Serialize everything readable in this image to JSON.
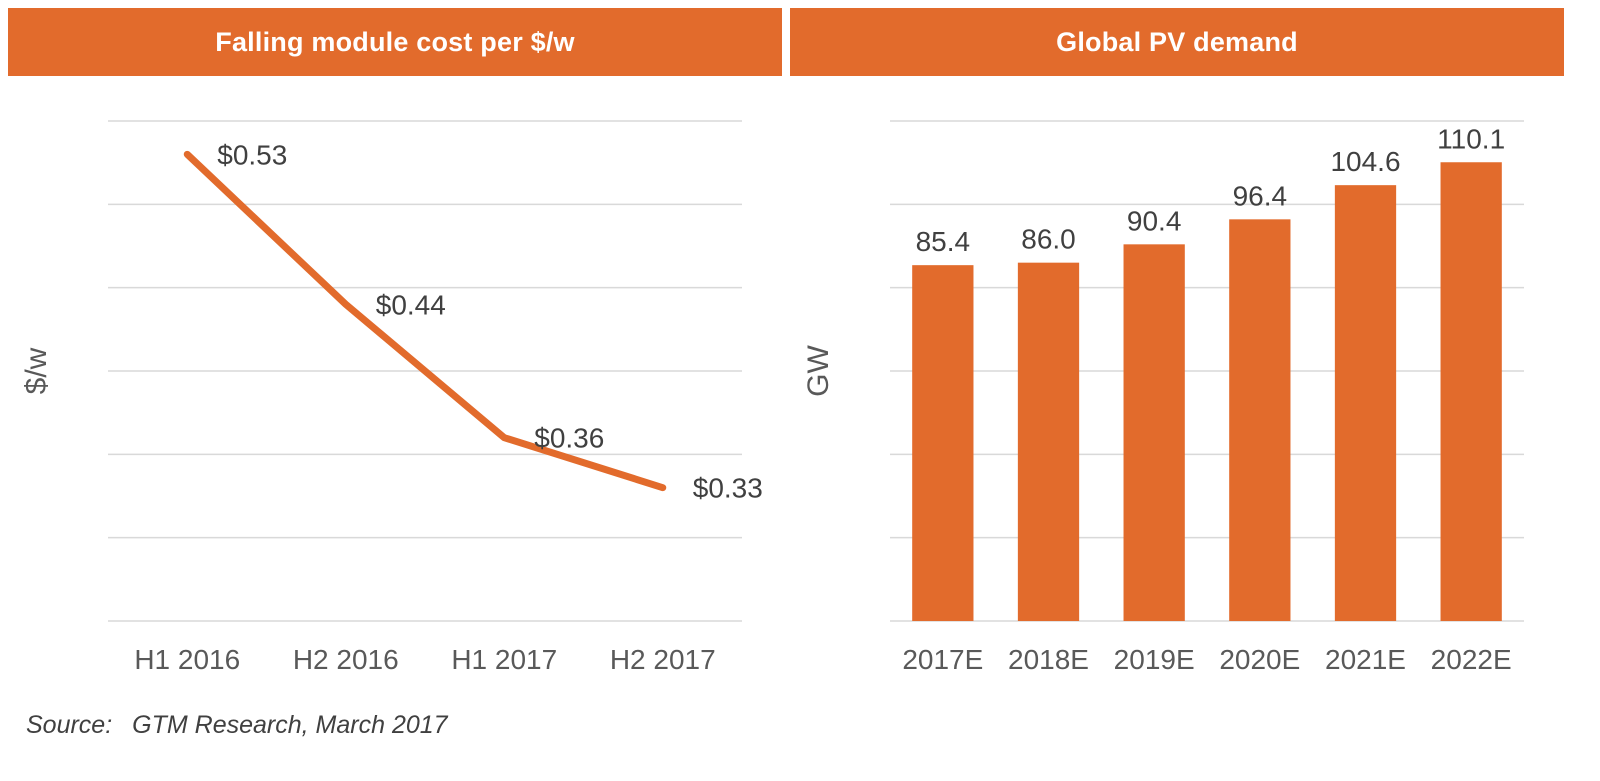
{
  "page": {
    "background": "#FFFFFF",
    "accent_color": "#E26B2C",
    "source_prefix": "Source:",
    "source_text": "GTM Research, March 2017"
  },
  "colors": {
    "grid": "#D9D9D9",
    "axis_text": "#595959",
    "data_label_text": "#404040",
    "header_text": "#FFFFFF"
  },
  "chart_data": [
    {
      "type": "line",
      "title": "Falling module cost per $/w",
      "categories": [
        "H1 2016",
        "H2 2016",
        "H1 2017",
        "H2 2017"
      ],
      "values": [
        0.53,
        0.44,
        0.36,
        0.33
      ],
      "data_labels": [
        "$0.53",
        "$0.44",
        "$0.36",
        "$0.33"
      ],
      "xlabel": "",
      "ylabel": "$/w",
      "ylim": [
        0.25,
        0.55
      ],
      "ytick_step": 0.05,
      "ytick_labels_shown": false,
      "grid": true,
      "legend": "none",
      "color": "#E26B2C"
    },
    {
      "type": "bar",
      "title": "Global PV demand",
      "categories": [
        "2017E",
        "2018E",
        "2019E",
        "2020E",
        "2021E",
        "2022E"
      ],
      "values": [
        85.4,
        86.0,
        90.4,
        96.4,
        104.6,
        110.1
      ],
      "data_labels": [
        "85.4",
        "86.0",
        "90.4",
        "96.4",
        "104.6",
        "110.1"
      ],
      "xlabel": "",
      "ylabel": "GW",
      "ylim": [
        0,
        120
      ],
      "ytick_step": 20,
      "ytick_labels_shown": false,
      "grid": true,
      "legend": "none",
      "color": "#E26B2C"
    }
  ]
}
